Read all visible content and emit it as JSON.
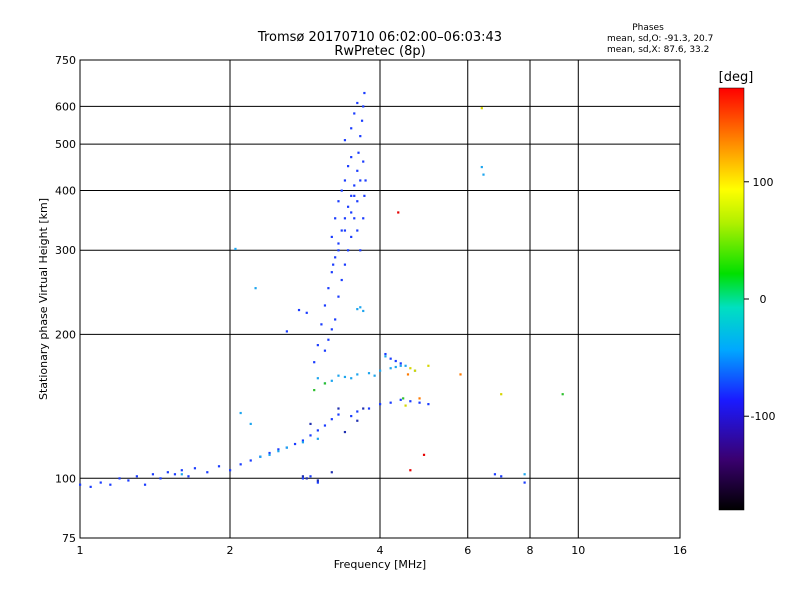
{
  "chart_data": {
    "type": "scatter",
    "title": "Tromsø 20170710 06:02:00–06:03:43",
    "subtitle": "RwPretec (8p)",
    "xlabel": "Frequency [MHz]",
    "ylabel": "Stationary phase Virtual Height [km]",
    "x_scale": "log",
    "y_scale": "log",
    "xlim": [
      1,
      16
    ],
    "ylim": [
      75,
      750
    ],
    "x_ticks": [
      "1",
      "2",
      "4",
      "6",
      "8",
      "10",
      "16"
    ],
    "y_ticks": [
      "75",
      "100",
      "200",
      "300",
      "400",
      "500",
      "600",
      "750"
    ],
    "grid": true,
    "phase_box": {
      "title": "Phases",
      "line_o": "mean, sd,O: -91.3, 20.7",
      "line_x": "mean, sd,X:  87.6, 33.2"
    },
    "colorbar": {
      "label": "[deg]",
      "range": [
        -180,
        180
      ],
      "ticks": [
        "100",
        "0",
        "-100"
      ]
    },
    "series": [
      {
        "color": "#1a3cff",
        "points": [
          [
            1.0,
            97
          ],
          [
            1.05,
            96
          ],
          [
            1.1,
            98
          ],
          [
            1.15,
            97
          ],
          [
            1.2,
            100
          ],
          [
            1.25,
            99
          ],
          [
            1.3,
            101
          ],
          [
            1.35,
            97
          ],
          [
            1.4,
            102
          ],
          [
            1.45,
            100
          ],
          [
            1.5,
            103
          ],
          [
            1.55,
            102
          ],
          [
            1.6,
            104
          ],
          [
            1.65,
            101
          ],
          [
            1.7,
            105
          ],
          [
            1.8,
            103
          ],
          [
            1.9,
            106
          ],
          [
            2.0,
            104
          ],
          [
            2.1,
            107
          ],
          [
            2.2,
            109
          ],
          [
            2.3,
            111
          ],
          [
            2.4,
            113
          ],
          [
            2.5,
            115
          ],
          [
            2.6,
            116
          ],
          [
            2.7,
            118
          ],
          [
            2.8,
            120
          ],
          [
            2.9,
            123
          ],
          [
            3.0,
            126
          ],
          [
            3.1,
            129
          ],
          [
            3.2,
            133
          ],
          [
            3.3,
            136
          ],
          [
            2.8,
            100
          ],
          [
            2.9,
            101
          ],
          [
            3.0,
            98
          ],
          [
            2.95,
            175
          ],
          [
            3.0,
            190
          ],
          [
            3.05,
            210
          ],
          [
            3.1,
            230
          ],
          [
            3.15,
            250
          ],
          [
            3.2,
            270
          ],
          [
            3.25,
            290
          ],
          [
            3.3,
            310
          ],
          [
            3.35,
            330
          ],
          [
            3.4,
            350
          ],
          [
            3.45,
            370
          ],
          [
            3.5,
            390
          ],
          [
            3.55,
            410
          ],
          [
            3.6,
            440
          ],
          [
            3.62,
            480
          ],
          [
            3.65,
            520
          ],
          [
            3.68,
            560
          ],
          [
            3.7,
            600
          ],
          [
            3.72,
            640
          ],
          [
            3.1,
            185
          ],
          [
            3.15,
            195
          ],
          [
            3.2,
            205
          ],
          [
            3.25,
            215
          ],
          [
            3.3,
            240
          ],
          [
            3.35,
            260
          ],
          [
            3.4,
            280
          ],
          [
            3.45,
            300
          ],
          [
            3.5,
            320
          ],
          [
            3.55,
            350
          ],
          [
            3.6,
            380
          ],
          [
            3.65,
            420
          ],
          [
            3.7,
            460
          ],
          [
            3.2,
            320
          ],
          [
            3.25,
            350
          ],
          [
            3.3,
            380
          ],
          [
            3.35,
            400
          ],
          [
            3.4,
            420
          ],
          [
            3.45,
            450
          ],
          [
            3.5,
            470
          ],
          [
            3.4,
            510
          ],
          [
            3.5,
            540
          ],
          [
            3.55,
            580
          ],
          [
            3.6,
            610
          ],
          [
            3.22,
            280
          ],
          [
            3.3,
            300
          ],
          [
            3.4,
            330
          ],
          [
            3.5,
            360
          ],
          [
            3.55,
            390
          ],
          [
            3.6,
            330
          ],
          [
            3.65,
            300
          ],
          [
            3.7,
            350
          ],
          [
            3.72,
            390
          ],
          [
            3.74,
            420
          ],
          [
            2.75,
            225
          ],
          [
            2.85,
            222
          ],
          [
            2.6,
            203
          ],
          [
            3.5,
            135
          ],
          [
            3.6,
            138
          ],
          [
            3.8,
            140
          ],
          [
            4.0,
            143
          ],
          [
            4.2,
            144
          ],
          [
            4.4,
            146
          ],
          [
            4.6,
            145
          ],
          [
            4.8,
            144
          ],
          [
            5.0,
            143
          ],
          [
            4.1,
            182
          ],
          [
            4.2,
            178
          ],
          [
            4.3,
            176
          ],
          [
            4.4,
            174
          ],
          [
            6.8,
            102
          ],
          [
            7.0,
            101
          ],
          [
            7.8,
            98
          ]
        ]
      },
      {
        "color": "#1da5ee",
        "points": [
          [
            3.0,
            162
          ],
          [
            3.2,
            160
          ],
          [
            3.4,
            163
          ],
          [
            3.6,
            165
          ],
          [
            3.8,
            166
          ],
          [
            4.0,
            168
          ],
          [
            4.2,
            170
          ],
          [
            4.3,
            171
          ],
          [
            4.5,
            172
          ],
          [
            4.7,
            168
          ],
          [
            3.1,
            158
          ],
          [
            3.5,
            162
          ],
          [
            3.9,
            164
          ],
          [
            4.1,
            180
          ],
          [
            4.4,
            172
          ],
          [
            3.3,
            164
          ],
          [
            2.3,
            111
          ],
          [
            2.4,
            112
          ],
          [
            2.5,
            114
          ],
          [
            2.6,
            116
          ],
          [
            2.8,
            119
          ],
          [
            3.0,
            121
          ],
          [
            2.1,
            137
          ],
          [
            2.2,
            130
          ],
          [
            2.05,
            302
          ],
          [
            2.25,
            250
          ],
          [
            3.6,
            226
          ],
          [
            3.65,
            228
          ],
          [
            3.7,
            224
          ],
          [
            6.4,
            448
          ],
          [
            6.45,
            432
          ],
          [
            7.8,
            102
          ],
          [
            1.6,
            102
          ]
        ]
      },
      {
        "color": "#2030b0",
        "points": [
          [
            2.8,
            101
          ],
          [
            2.85,
            100
          ],
          [
            3.0,
            99
          ],
          [
            3.2,
            103
          ],
          [
            3.4,
            125
          ],
          [
            3.6,
            132
          ],
          [
            3.7,
            140
          ],
          [
            3.3,
            140
          ],
          [
            2.9,
            130
          ]
        ]
      },
      {
        "color": "#d6d600",
        "points": [
          [
            4.5,
            142
          ],
          [
            4.6,
            170
          ],
          [
            4.7,
            168
          ],
          [
            5.0,
            172
          ],
          [
            6.4,
            595
          ],
          [
            7.0,
            150
          ]
        ]
      },
      {
        "color": "#ff7a00",
        "points": [
          [
            5.8,
            165
          ],
          [
            4.55,
            165
          ],
          [
            4.8,
            147
          ]
        ]
      },
      {
        "color": "#e60000",
        "points": [
          [
            4.35,
            360
          ],
          [
            4.9,
            112
          ],
          [
            4.6,
            104
          ]
        ]
      },
      {
        "color": "#2ec02e",
        "points": [
          [
            2.95,
            153
          ],
          [
            3.1,
            158
          ],
          [
            9.3,
            150
          ],
          [
            4.45,
            147
          ]
        ]
      }
    ]
  }
}
